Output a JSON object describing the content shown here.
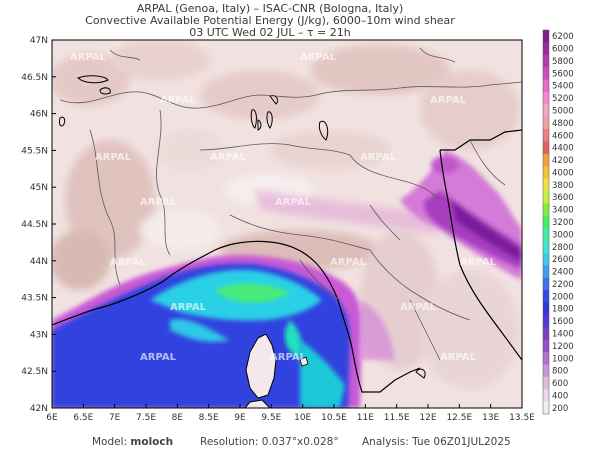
{
  "header": {
    "line1": "ARPAL (Genoa, Italy)  –  ISAC-CNR (Bologna, Italy)",
    "line2": "Convective Available Potential Energy (J/kg), 6000–10m wind shear",
    "line3": "03 UTC Wed 02 JUL  –  τ = 21h"
  },
  "map": {
    "lat_labels": [
      "47N",
      "46.5N",
      "46N",
      "45.5N",
      "45N",
      "44.5N",
      "44N",
      "43.5N",
      "43N",
      "42.5N",
      "42N"
    ],
    "lon_labels": [
      "6E",
      "6.5E",
      "7E",
      "7.5E",
      "8E",
      "8.5E",
      "9E",
      "9.5E",
      "10E",
      "10.5E",
      "11E",
      "11.5E",
      "12E",
      "12.5E",
      "13E",
      "13.5E"
    ],
    "watermark": "ARPAL",
    "colors": {
      "land_pink": "#ecd5d3",
      "land_brown": "#d9bdb7",
      "low": "#f3e6e6",
      "sea_blue": "#2f43e0",
      "sea_cyan": "#2ad5e6",
      "sea_green": "#4ff058",
      "magenta": "#c45ad6",
      "purple": "#8c2fb8",
      "coast": "#000000",
      "border": "#555555"
    }
  },
  "colorbar": {
    "labels": [
      "6200",
      "6000",
      "5800",
      "5600",
      "5400",
      "5200",
      "5000",
      "4800",
      "4600",
      "4400",
      "4200",
      "4000",
      "3800",
      "3600",
      "3400",
      "3200",
      "3000",
      "2800",
      "2600",
      "2400",
      "2200",
      "2000",
      "1800",
      "1600",
      "1400",
      "1200",
      "1000",
      "800",
      "600",
      "400",
      "200"
    ],
    "colors": [
      "#7a1f8c",
      "#9a2aa0",
      "#b838b0",
      "#d24ac0",
      "#e86ac8",
      "#f48cc8",
      "#f4a8c4",
      "#f0a0a0",
      "#e88080",
      "#e06060",
      "#f0a040",
      "#f4c040",
      "#f0e040",
      "#c8f040",
      "#80f040",
      "#40f060",
      "#40f0a0",
      "#40e8d0",
      "#40c8f0",
      "#40a0f0",
      "#4070f0",
      "#3848e8",
      "#3038d8",
      "#5838d0",
      "#7840c8",
      "#9850c8",
      "#b070d0",
      "#c898d8",
      "#dcbce0",
      "#ecd8e6",
      "#f6eef0"
    ]
  },
  "footer": {
    "model_label": "Model:",
    "model_value": "moloch",
    "resolution_label": "Resolution:",
    "resolution_value": "0.037°x0.028°",
    "analysis_label": "Analysis:",
    "analysis_value": "Tue 06Z01JUL2025"
  }
}
